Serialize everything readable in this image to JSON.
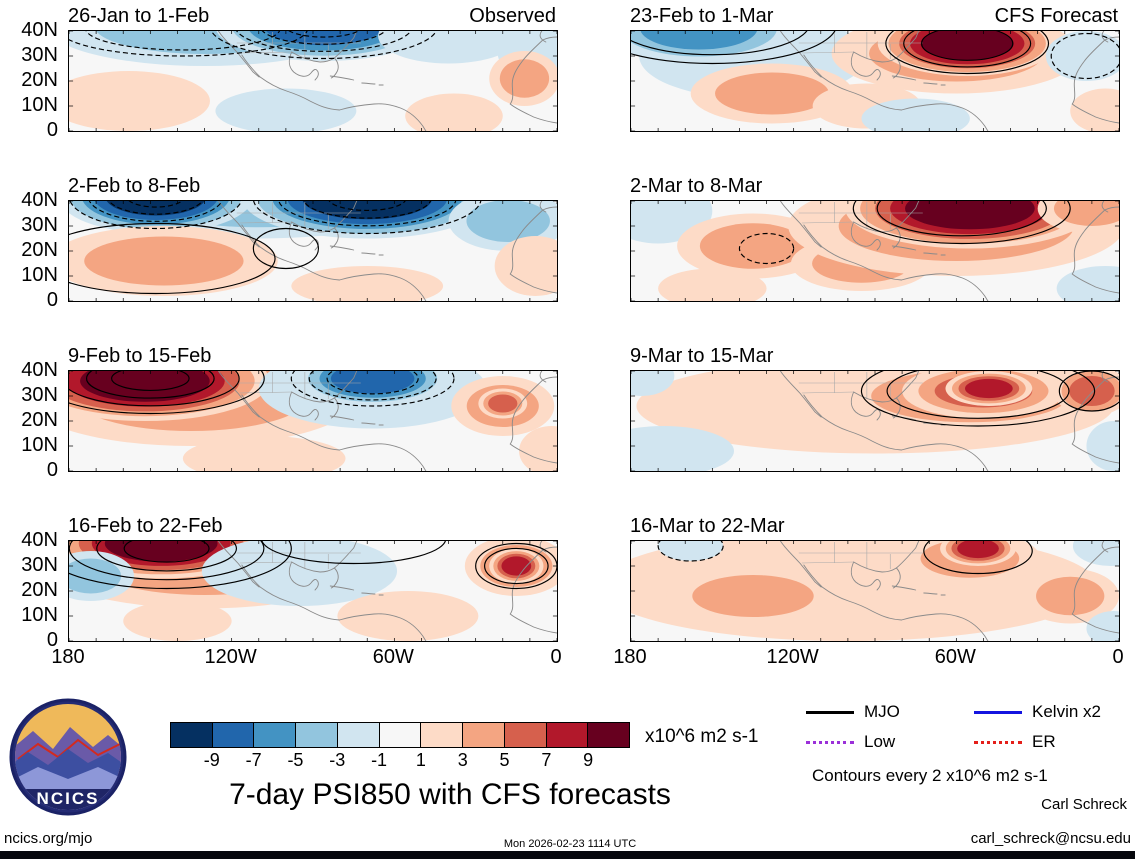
{
  "figure": {
    "title": "7-day PSI850 with CFS forecasts",
    "contour_note": "Contours every 2 x10^6 m2 s-1",
    "author": "Carl Schreck",
    "email": "carl_schreck@ncsu.edu",
    "site": "ncics.org/mjo",
    "timestamp": "Mon 2026-02-23 1114 UTC",
    "logo_text": "NCICS"
  },
  "legend": {
    "items": [
      {
        "label": "MJO",
        "color": "#000000",
        "style": "solid"
      },
      {
        "label": "Kelvin x2",
        "color": "#1414e0",
        "style": "solid"
      },
      {
        "label": "Low",
        "color": "#9b30d9",
        "style": "dotted"
      },
      {
        "label": "ER",
        "color": "#e41f1a",
        "style": "dotted"
      }
    ]
  },
  "chart_data": {
    "type": "heatmap",
    "title": "7-day PSI850 with CFS forecasts",
    "description": "Eight filled-contour maps of 850 hPa streamfunction anomalies (x10^6 m2 s-1) over 0-40N, 180-0 longitude; left column observed weekly means, right column CFS forecast weekly means; black contours mark wave-filtered anomalies every 2 x10^6 m2 s-1 (dashed negative).",
    "map_domain": {
      "lon_west_range": [
        180,
        0
      ],
      "lat_range": [
        0,
        40
      ]
    },
    "lat_ticks": [
      "40N",
      "30N",
      "20N",
      "10N",
      "0"
    ],
    "lon_ticks": [
      "180",
      "120W",
      "60W",
      "0"
    ],
    "colorbar": {
      "units": "x10^6 m2 s-1",
      "tick_labels": [
        "-9",
        "-7",
        "-5",
        "-3",
        "-1",
        "1",
        "3",
        "5",
        "7",
        "9"
      ],
      "thresholds": [
        -9,
        -7,
        -5,
        -3,
        -1,
        1,
        3,
        5,
        7,
        9
      ],
      "colors": [
        "#053061",
        "#2166ac",
        "#4393c3",
        "#92c5de",
        "#d1e5f0",
        "#f7f7f7",
        "#fddbc7",
        "#f4a582",
        "#d6604d",
        "#b2182b",
        "#67001f"
      ]
    },
    "columns": [
      {
        "header": "Observed",
        "panels": [
          {
            "title": "26-Jan to 1-Feb",
            "centers": [
              [
                130,
                42,
                58,
                16,
                -4
              ],
              [
                86,
                42,
                40,
                14,
                -9
              ],
              [
                40,
                38,
                26,
                11,
                -3
              ],
              [
                8,
                32,
                14,
                12,
                -2
              ],
              [
                158,
                12,
                30,
                12,
                2
              ],
              [
                12,
                21,
                13,
                11,
                4
              ],
              [
                38,
                6,
                18,
                9,
                2
              ],
              [
                100,
                8,
                26,
                9,
                -2
              ]
            ],
            "contours": [
              [
                86,
                42,
                42,
                13,
                4,
                1
              ],
              [
                138,
                41,
                46,
                11,
                2,
                1
              ]
            ]
          },
          {
            "title": "2-Feb to 8-Feb",
            "centers": [
              [
                110,
                40,
                62,
                15,
                -4
              ],
              [
                148,
                42,
                36,
                15,
                -11
              ],
              [
                70,
                41,
                46,
                16,
                -11
              ],
              [
                18,
                32,
                22,
                12,
                -5
              ],
              [
                145,
                16,
                42,
                14,
                5
              ],
              [
                8,
                14,
                15,
                12,
                2
              ],
              [
                70,
                6,
                28,
                8,
                2
              ]
            ],
            "contours": [
              [
                148,
                42,
                32,
                13,
                4,
                1
              ],
              [
                70,
                41,
                42,
                14,
                4,
                1
              ],
              [
                148,
                17,
                44,
                14,
                1,
                0
              ],
              [
                100,
                21,
                12,
                8,
                1,
                0
              ]
            ]
          },
          {
            "title": "9-Feb to 15-Feb",
            "centers": [
              [
                135,
                30,
                62,
                20,
                5
              ],
              [
                152,
                36,
                46,
                16,
                11
              ],
              [
                68,
                33,
                42,
                16,
                -3
              ],
              [
                68,
                37,
                28,
                11,
                -9
              ],
              [
                20,
                26,
                19,
                12,
                5
              ],
              [
                20,
                27,
                9,
                6,
                7
              ],
              [
                108,
                5,
                30,
                9,
                2
              ],
              [
                2,
                8,
                12,
                10,
                2
              ]
            ],
            "contours": [
              [
                150,
                37,
                42,
                14,
                4,
                0
              ],
              [
                68,
                37,
                30,
                11,
                3,
                1
              ]
            ]
          },
          {
            "title": "16-Feb to 22-Feb",
            "centers": [
              [
                130,
                31,
                60,
                18,
                5
              ],
              [
                146,
                39,
                40,
                14,
                11
              ],
              [
                172,
                26,
                16,
                10,
                -5
              ],
              [
                95,
                28,
                36,
                14,
                -3
              ],
              [
                15,
                30,
                19,
                12,
                5
              ],
              [
                15,
                30,
                10,
                7,
                9
              ],
              [
                55,
                10,
                26,
                10,
                2
              ],
              [
                140,
                8,
                20,
                8,
                2
              ]
            ],
            "contours": [
              [
                144,
                37,
                46,
                16,
                4,
                0
              ],
              [
                15,
                30,
                15,
                9,
                2,
                0
              ],
              [
                75,
                41,
                34,
                10,
                1,
                0
              ]
            ]
          }
        ]
      },
      {
        "header": "CFS Forecast",
        "panels": [
          {
            "title": "23-Feb to 1-Mar",
            "centers": [
              [
                135,
                30,
                42,
                17,
                -3
              ],
              [
                155,
                41,
                36,
                14,
                -7
              ],
              [
                128,
                15,
                30,
                12,
                5
              ],
              [
                93,
                10,
                20,
                9,
                3
              ],
              [
                60,
                31,
                46,
                16,
                5
              ],
              [
                56,
                35,
                33,
                13,
                11
              ],
              [
                12,
                30,
                15,
                10,
                -2
              ],
              [
                5,
                8,
                13,
                9,
                3
              ],
              [
                75,
                5,
                20,
                8,
                -2
              ]
            ],
            "contours": [
              [
                56,
                35,
                30,
                12,
                3,
                0
              ],
              [
                150,
                43,
                46,
                16,
                2,
                0
              ],
              [
                12,
                30,
                13,
                9,
                1,
                1
              ]
            ]
          },
          {
            "title": "2-Mar to 8-Mar",
            "centers": [
              [
                170,
                36,
                20,
                13,
                -3
              ],
              [
                135,
                22,
                28,
                13,
                5
              ],
              [
                95,
                15,
                26,
                11,
                5
              ],
              [
                60,
                30,
                62,
                20,
                5
              ],
              [
                55,
                37,
                46,
                16,
                11
              ],
              [
                10,
                37,
                20,
                10,
                5
              ],
              [
                5,
                5,
                18,
                9,
                -3
              ],
              [
                150,
                5,
                20,
                8,
                2
              ]
            ],
            "contours": [
              [
                58,
                37,
                40,
                14,
                2,
                0
              ],
              [
                130,
                21,
                10,
                6,
                1,
                1
              ]
            ]
          },
          {
            "title": "9-Mar to 15-Mar",
            "centers": [
              [
                90,
                26,
                88,
                19,
                3
              ],
              [
                55,
                30,
                52,
                15,
                5
              ],
              [
                50,
                32,
                30,
                11,
                7
              ],
              [
                48,
                33,
                16,
                7,
                9
              ],
              [
                10,
                32,
                14,
                10,
                7
              ],
              [
                168,
                8,
                26,
                10,
                -2
              ],
              [
                176,
                38,
                12,
                8,
                -2
              ],
              [
                2,
                10,
                10,
                10,
                -2
              ]
            ],
            "contours": [
              [
                52,
                32,
                43,
                14,
                2,
                0
              ],
              [
                10,
                32,
                12,
                8,
                1,
                0
              ]
            ]
          },
          {
            "title": "16-Mar to 22-Mar",
            "centers": [
              [
                100,
                22,
                92,
                22,
                2
              ],
              [
                135,
                18,
                32,
                12,
                4
              ],
              [
                55,
                33,
                26,
                11,
                5
              ],
              [
                52,
                37,
                14,
                7,
                9
              ],
              [
                18,
                18,
                18,
                11,
                4
              ],
              [
                3,
                38,
                14,
                8,
                -3
              ],
              [
                2,
                5,
                10,
                7,
                -2
              ],
              [
                158,
                38,
                12,
                6,
                -2
              ]
            ],
            "contours": [
              [
                158,
                38,
                12,
                6,
                1,
                1
              ],
              [
                52,
                36,
                20,
                9,
                1,
                0
              ]
            ]
          }
        ]
      }
    ]
  }
}
